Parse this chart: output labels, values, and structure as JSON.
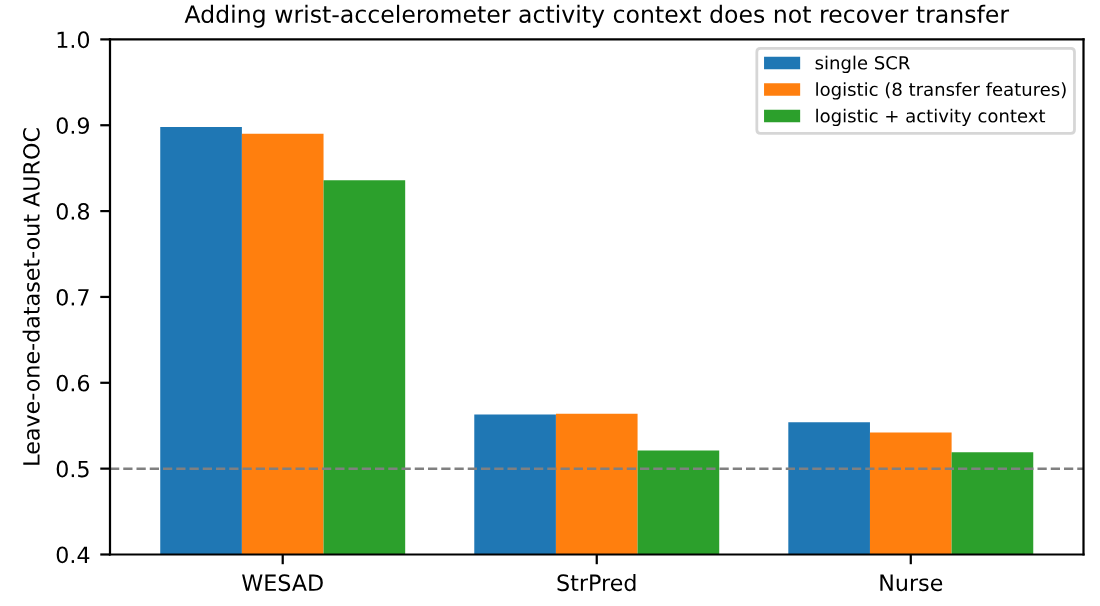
{
  "chart_data": {
    "type": "bar",
    "title": "Adding wrist-accelerometer activity context does not recover transfer",
    "ylabel": "Leave-one-dataset-out AUROC",
    "categories": [
      "WESAD",
      "StrPred",
      "Nurse"
    ],
    "series": [
      {
        "name": "single SCR",
        "color": "#1f77b4",
        "values": [
          0.898,
          0.563,
          0.554
        ]
      },
      {
        "name": "logistic (8 transfer features)",
        "color": "#ff7f0e",
        "values": [
          0.89,
          0.564,
          0.542
        ]
      },
      {
        "name": "logistic + activity context",
        "color": "#2ca02c",
        "values": [
          0.836,
          0.521,
          0.519
        ]
      }
    ],
    "ylim": [
      0.4,
      1.0
    ],
    "yticks": [
      0.4,
      0.5,
      0.6,
      0.7,
      0.8,
      0.9,
      {
        "value": 1.0,
        "label": "1.0"
      }
    ],
    "ref_lines": [
      {
        "axis": "y",
        "value": 0.5,
        "color": "#808080",
        "line_style": "dashed"
      }
    ],
    "legend": "top right",
    "grid": false
  }
}
